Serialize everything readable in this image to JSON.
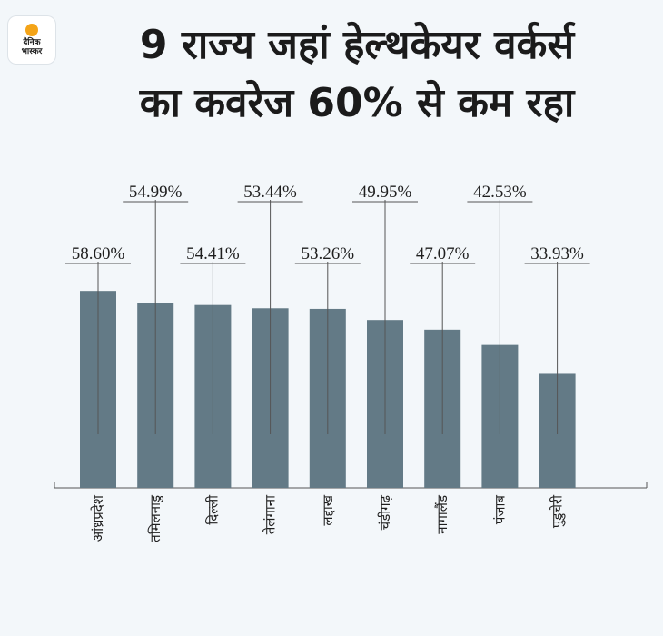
{
  "brand": {
    "logo_text_line1": "दैनिक",
    "logo_text_line2": "भास्कर"
  },
  "title_line1": "9 राज्य जहां हेल्थकेयर वर्कर्स",
  "title_line2": "का कवरेज 60% से कम रहा",
  "chart_data": {
    "type": "bar",
    "categories": [
      "आंध्रप्रदेश",
      "तमिलनाडु",
      "दिल्ली",
      "तेलंगाना",
      "लद्दाख",
      "चंडीगढ़",
      "नागालैंड",
      "पंजाब",
      "पुडुचेरी"
    ],
    "values": [
      58.6,
      54.99,
      54.41,
      53.44,
      53.26,
      49.95,
      47.07,
      42.53,
      33.93
    ],
    "value_labels": [
      "58.60%",
      "54.99%",
      "54.41%",
      "53.44%",
      "53.26%",
      "49.95%",
      "47.07%",
      "42.53%",
      "33.93%"
    ],
    "title": "",
    "xlabel": "",
    "ylabel": "",
    "ylim": [
      0,
      100
    ],
    "grid": false,
    "bar_color": "#637a86",
    "line_color": "#555555"
  }
}
